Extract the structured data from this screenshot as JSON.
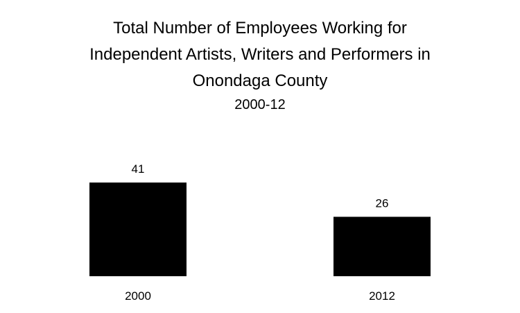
{
  "chart_data": {
    "type": "bar",
    "title": "Total Number of Employees Working for Independent Artists, Writers and Performers in Onondaga County",
    "title_lines": [
      "Total Number of Employees Working for",
      "Independent Artists, Writers and Performers in",
      "Onondaga County"
    ],
    "subtitle": "2000-12",
    "categories": [
      "2000",
      "2012"
    ],
    "values": [
      41,
      26
    ],
    "data_labels": [
      "41",
      "26"
    ],
    "xlabel": "",
    "ylabel": "",
    "ylim": [
      0,
      41
    ],
    "grid": false,
    "legend": "none",
    "bar_color": "#000000"
  }
}
